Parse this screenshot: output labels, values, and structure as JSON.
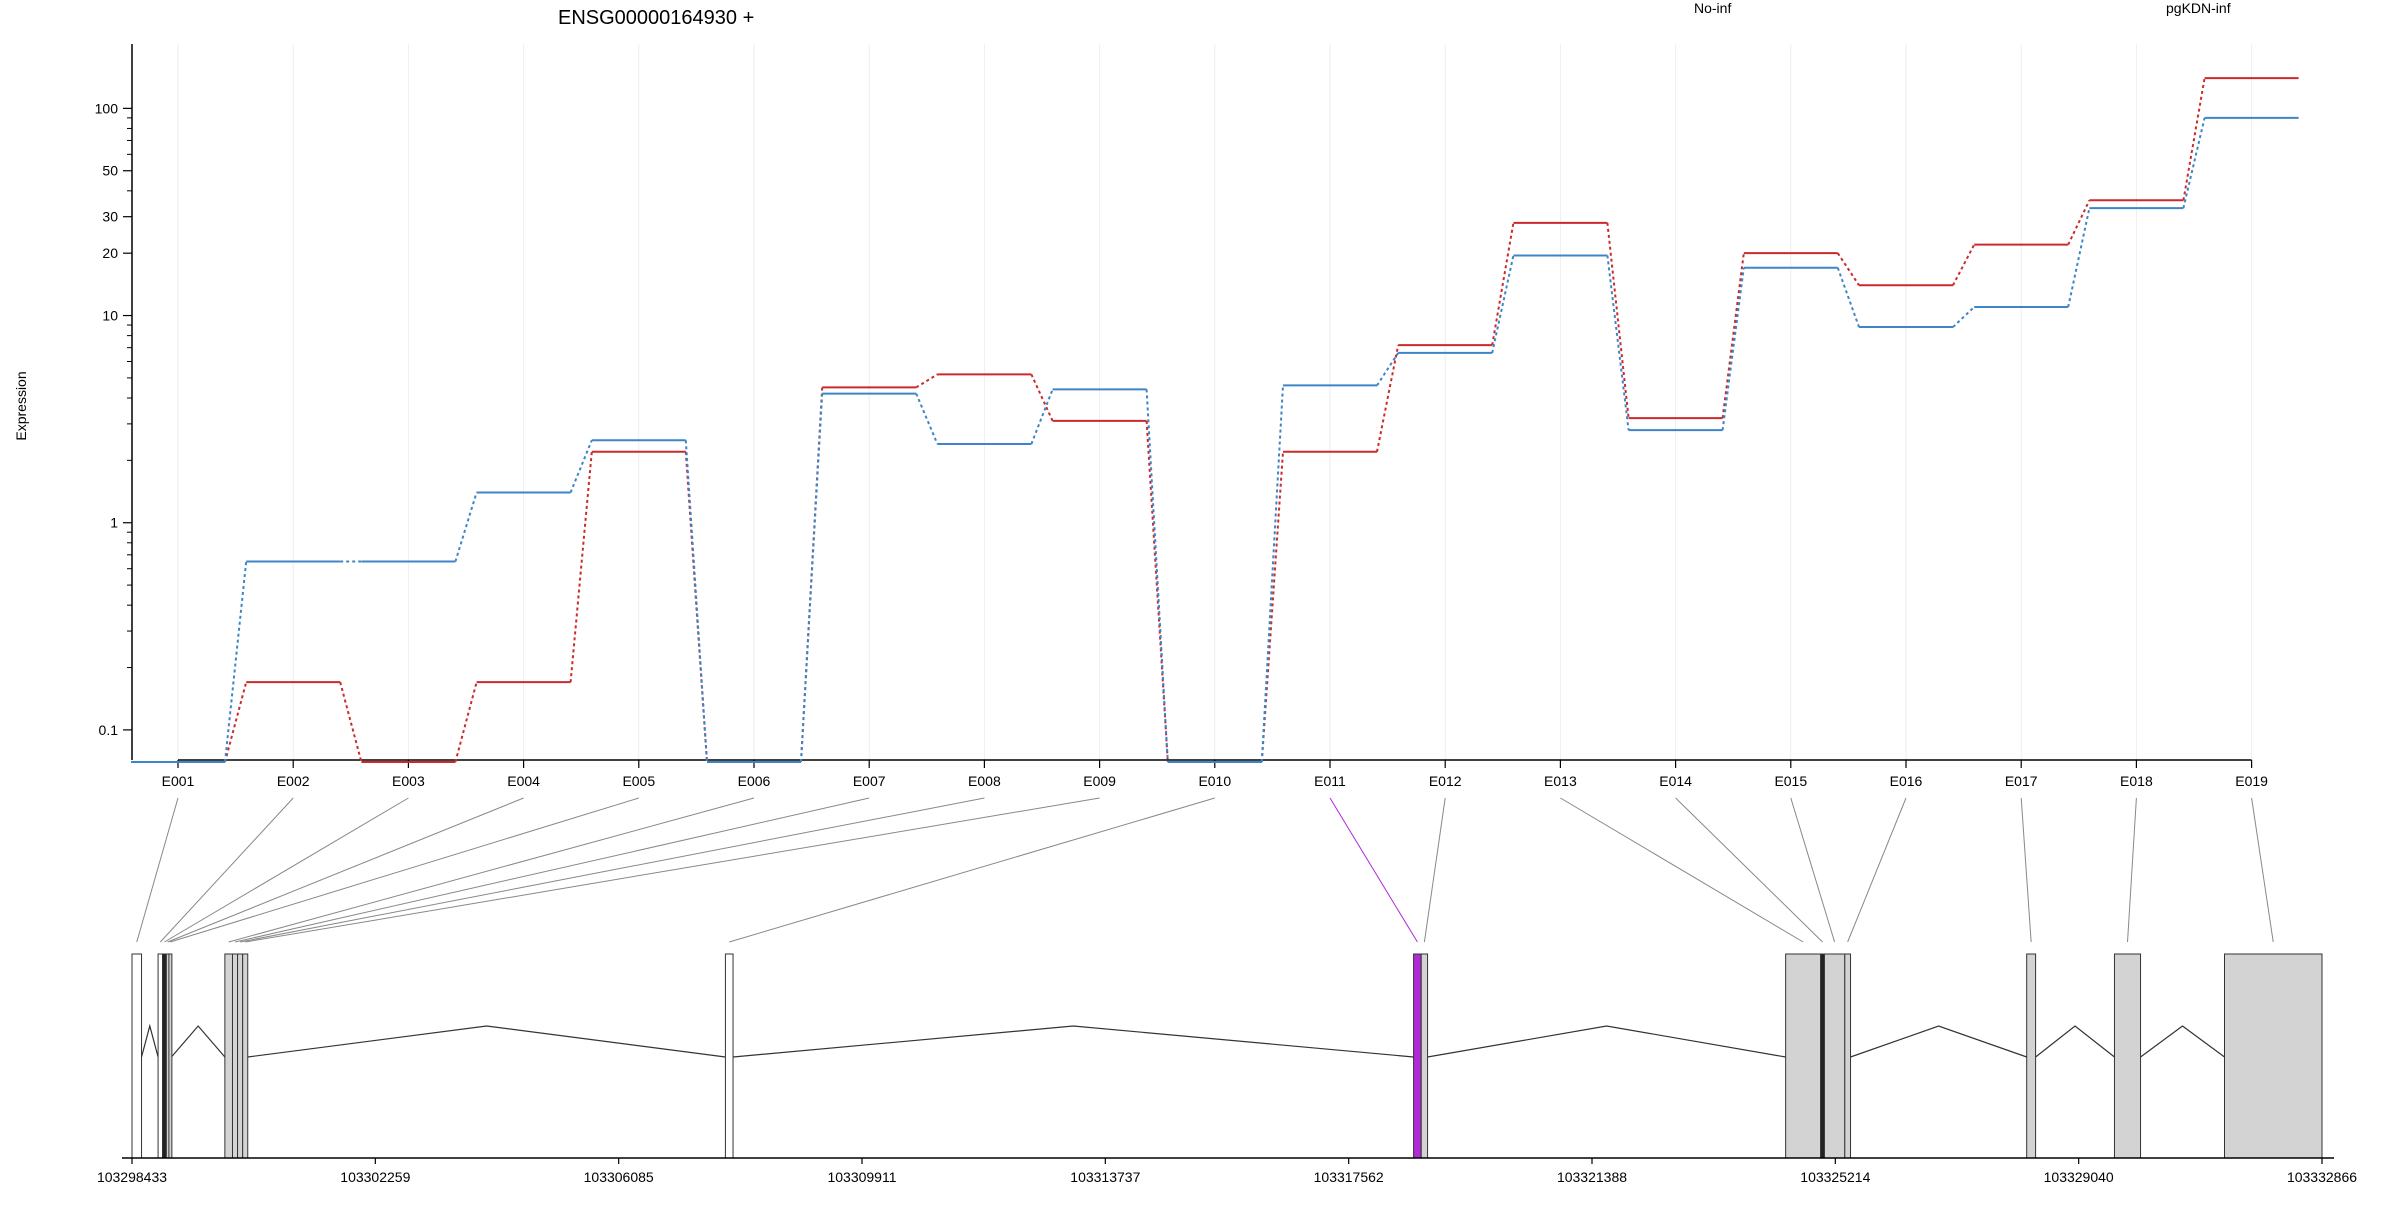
{
  "colors": {
    "no_inf": "#cc2a2a",
    "pgkdn_inf": "#3d85c6",
    "exon_fill": "#d3d3d3",
    "highlight_exon": "#b02ad6",
    "connector": "#888888",
    "grid": "#eeeeee",
    "axis": "#000000"
  },
  "chart_data": {
    "type": "line",
    "title": "ENSG00000164930 +",
    "ylabel": "Expression",
    "xlabel": "",
    "y_scale": "log",
    "ylim": [
      0.07,
      200
    ],
    "grid": true,
    "legend_placement": "top",
    "yticks": [
      {
        "value": 0.1,
        "label": "0.1"
      },
      {
        "value": 1,
        "label": "1"
      },
      {
        "value": 10,
        "label": "10"
      },
      {
        "value": 20,
        "label": "20"
      },
      {
        "value": 30,
        "label": "30"
      },
      {
        "value": 50,
        "label": "50"
      },
      {
        "value": 100,
        "label": "100"
      }
    ],
    "categories": [
      "E001",
      "E002",
      "E003",
      "E004",
      "E005",
      "E006",
      "E007",
      "E008",
      "E009",
      "E010",
      "E011",
      "E012",
      "E013",
      "E014",
      "E015",
      "E016",
      "E017",
      "E018",
      "E019"
    ],
    "series": [
      {
        "name": "No-inf",
        "color_key": "no_inf",
        "values": [
          0.07,
          0.17,
          0.07,
          0.17,
          2.2,
          0.07,
          4.5,
          5.2,
          3.1,
          0.07,
          2.2,
          7.2,
          28,
          3.2,
          20,
          14,
          22,
          36,
          140
        ]
      },
      {
        "name": "pgKDN-inf",
        "color_key": "pgkdn_inf",
        "values": [
          0.07,
          0.65,
          0.65,
          1.4,
          2.5,
          0.07,
          4.2,
          2.4,
          4.4,
          0.07,
          4.6,
          6.6,
          19.5,
          2.8,
          17,
          8.8,
          11,
          33,
          90
        ]
      }
    ]
  },
  "gene_model": {
    "coordinate_range": [
      103298433,
      103332866
    ],
    "axis_labels": [
      "103298433",
      "103302259",
      "103306085",
      "103309911",
      "103313737",
      "103317562",
      "103321388",
      "103325214",
      "103329040",
      "103332866"
    ],
    "exons": [
      {
        "id": "E001",
        "start": 103298433,
        "end": 103298583,
        "fill": "white"
      },
      {
        "id": "E002",
        "start": 103298843,
        "end": 103298913,
        "fill": "white"
      },
      {
        "id": "E003",
        "start": 103298913,
        "end": 103298973,
        "fill": "dark"
      },
      {
        "id": "E004",
        "start": 103298973,
        "end": 103299013,
        "fill": "gray"
      },
      {
        "id": "E005",
        "start": 103299013,
        "end": 103299053,
        "fill": "gray"
      },
      {
        "id": "E006",
        "start": 103299893,
        "end": 103300013,
        "fill": "gray"
      },
      {
        "id": "E007",
        "start": 103300013,
        "end": 103300093,
        "fill": "gray"
      },
      {
        "id": "E008",
        "start": 103300093,
        "end": 103300173,
        "fill": "gray"
      },
      {
        "id": "E009",
        "start": 103300173,
        "end": 103300253,
        "fill": "gray"
      },
      {
        "id": "E010",
        "start": 103307763,
        "end": 103307883,
        "fill": "white"
      },
      {
        "id": "E011",
        "start": 103318583,
        "end": 103318703,
        "fill": "highlight"
      },
      {
        "id": "E012",
        "start": 103318703,
        "end": 103318803,
        "fill": "gray"
      },
      {
        "id": "E013",
        "start": 103324433,
        "end": 103324983,
        "fill": "gray"
      },
      {
        "id": "E014",
        "start": 103324983,
        "end": 103325043,
        "fill": "dark"
      },
      {
        "id": "E015",
        "start": 103325043,
        "end": 103325363,
        "fill": "gray"
      },
      {
        "id": "E016",
        "start": 103325363,
        "end": 103325453,
        "fill": "gray"
      },
      {
        "id": "E017",
        "start": 103328223,
        "end": 103328363,
        "fill": "gray"
      },
      {
        "id": "E018",
        "start": 103329603,
        "end": 103330013,
        "fill": "gray"
      },
      {
        "id": "E019",
        "start": 103331333,
        "end": 103332866,
        "fill": "gray"
      }
    ],
    "introns": [
      [
        103298583,
        103298843
      ],
      [
        103299053,
        103299893
      ],
      [
        103300253,
        103307763
      ],
      [
        103307883,
        103318583
      ],
      [
        103318803,
        103324433
      ],
      [
        103325453,
        103328223
      ],
      [
        103328363,
        103329603
      ],
      [
        103330013,
        103331333
      ]
    ]
  }
}
